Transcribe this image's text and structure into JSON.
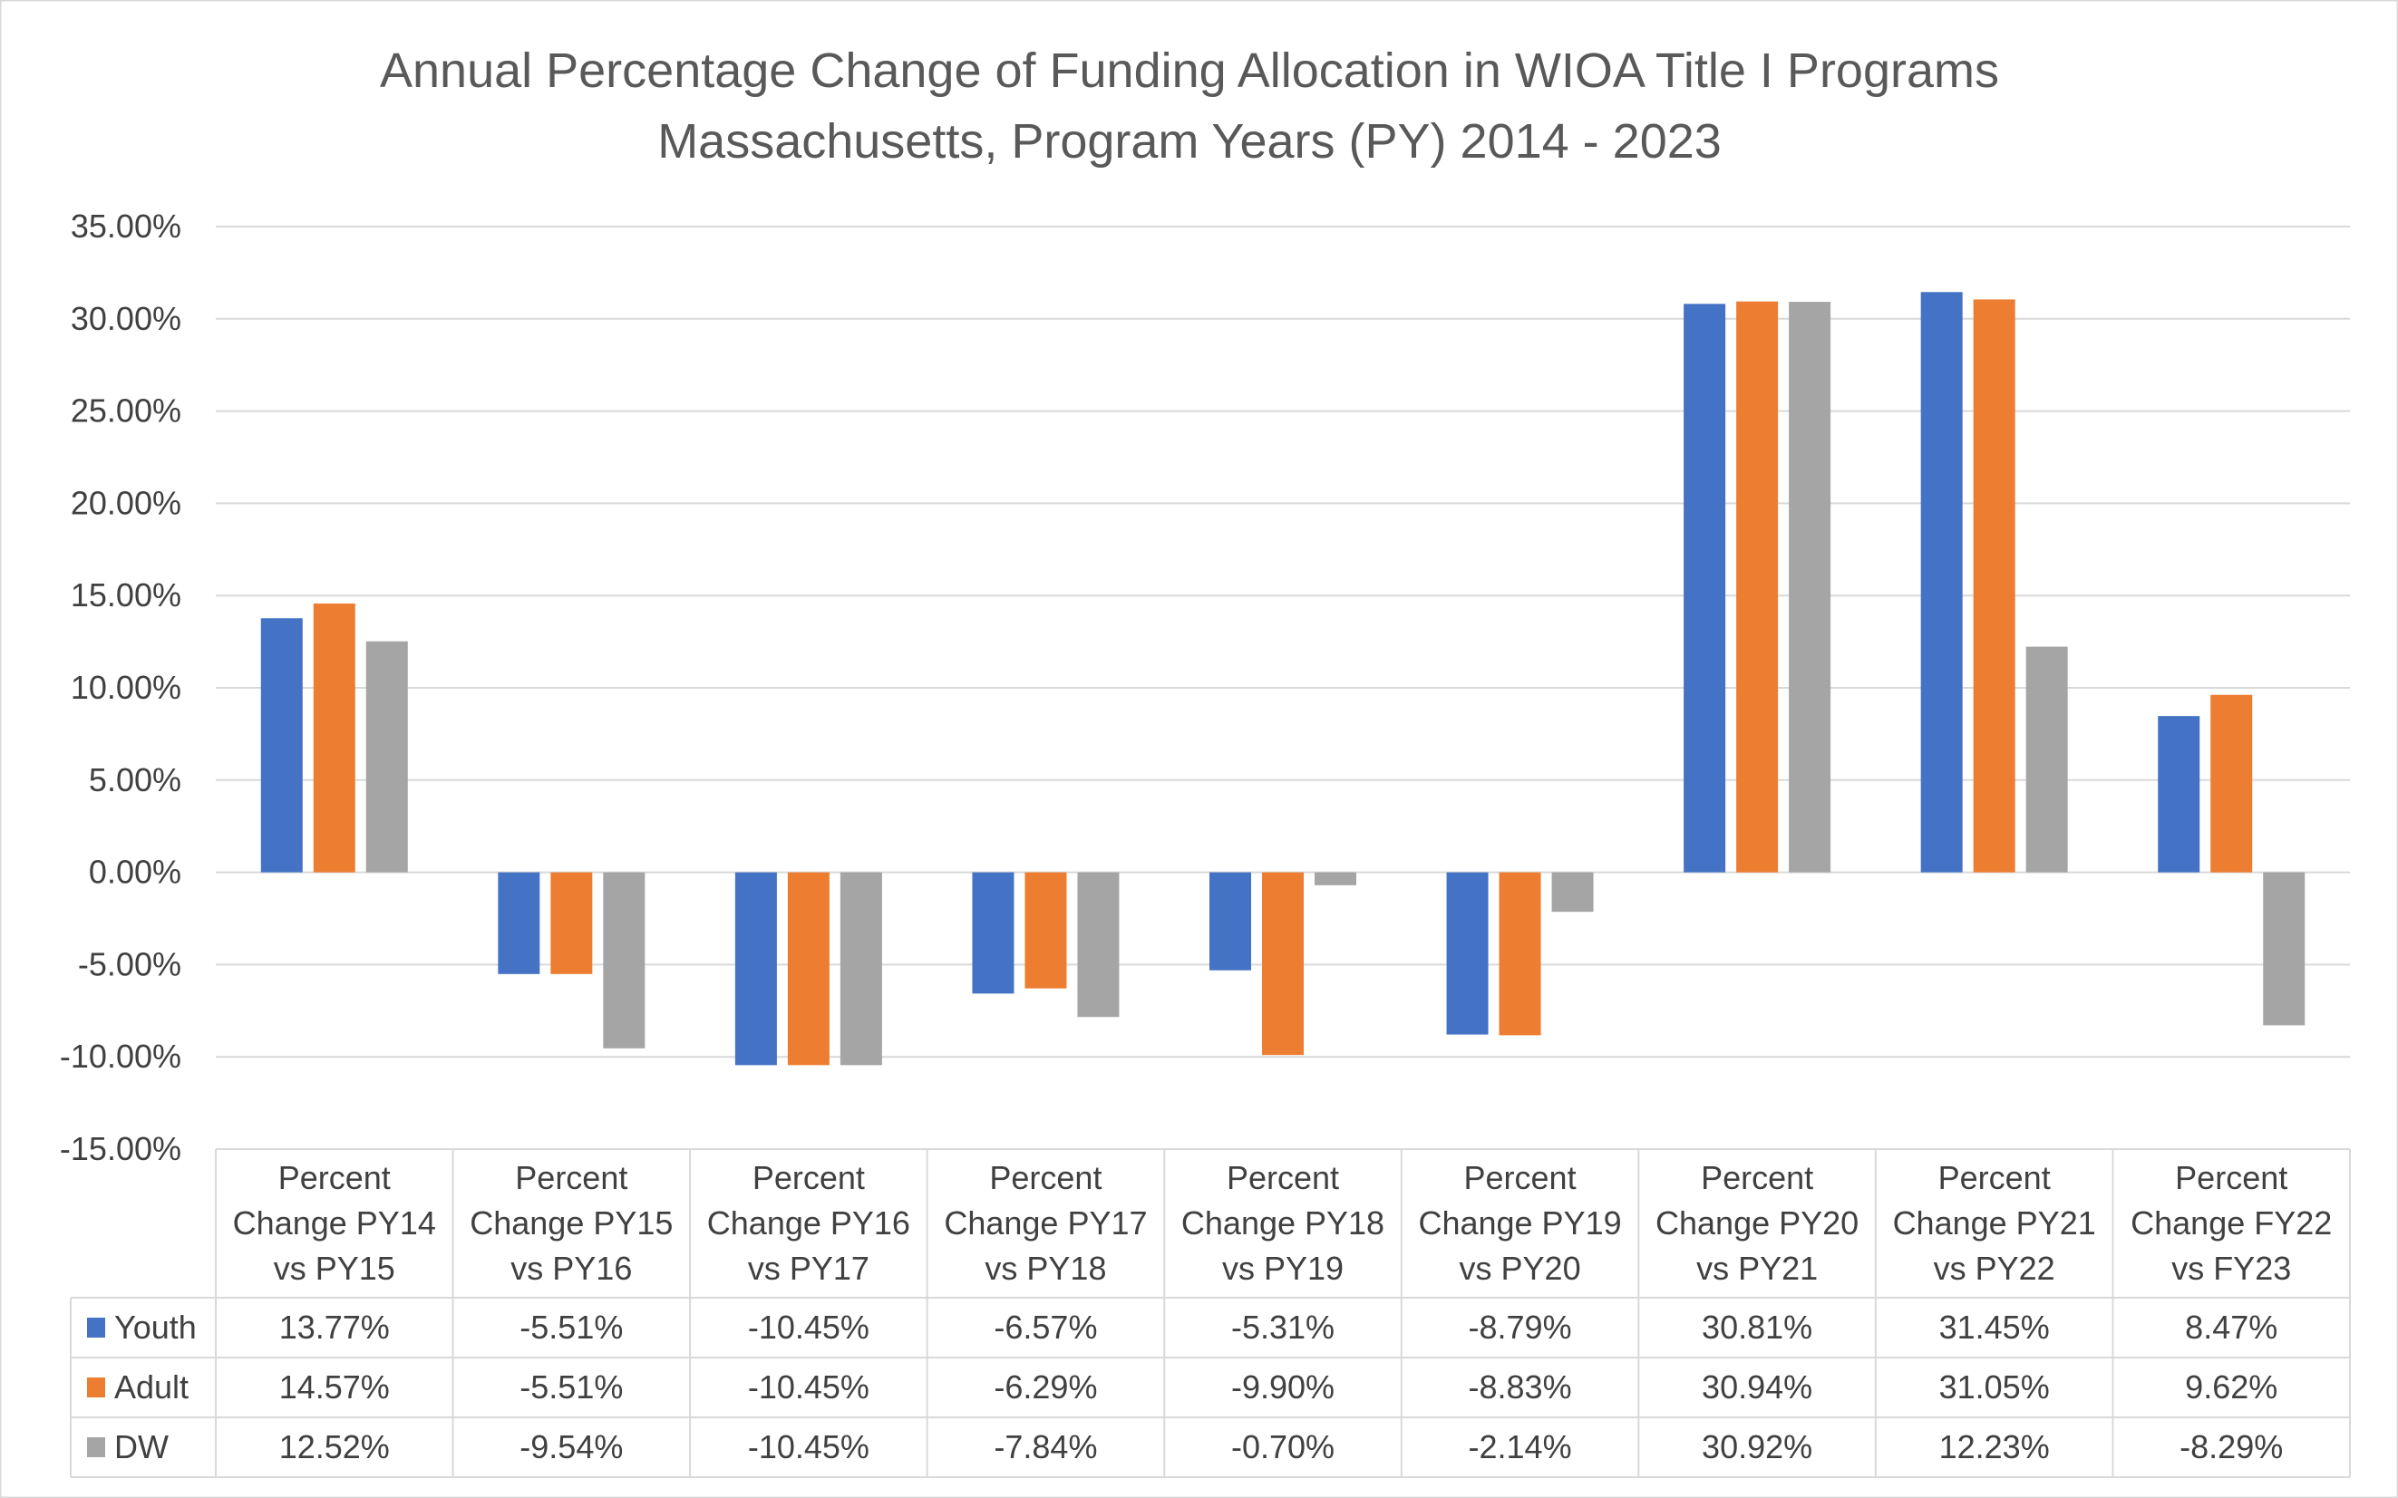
{
  "chart_data": {
    "type": "bar",
    "title": "Annual Percentage Change of Funding Allocation in WIOA Title I Programs",
    "subtitle": "Massachusetts, Program Years (PY) 2014 - 2023",
    "categories": [
      [
        "Percent",
        "Change PY14",
        "vs PY15"
      ],
      [
        "Percent",
        "Change PY15",
        "vs PY16"
      ],
      [
        "Percent",
        "Change PY16",
        "vs PY17"
      ],
      [
        "Percent",
        "Change PY17",
        "vs PY18"
      ],
      [
        "Percent",
        "Change PY18",
        "vs PY19"
      ],
      [
        "Percent",
        "Change PY19",
        "vs PY20"
      ],
      [
        "Percent",
        "Change PY20",
        "vs PY21"
      ],
      [
        "Percent",
        "Change PY21",
        "vs PY22"
      ],
      [
        "Percent",
        "Change FY22",
        "vs FY23"
      ]
    ],
    "series": [
      {
        "name": "Youth",
        "color": "#4472C4",
        "values": [
          13.77,
          -5.51,
          -10.45,
          -6.57,
          -5.31,
          -8.79,
          30.81,
          31.45,
          8.47
        ],
        "labels": [
          "13.77%",
          "-5.51%",
          "-10.45%",
          "-6.57%",
          "-5.31%",
          "-8.79%",
          "30.81%",
          "31.45%",
          "8.47%"
        ]
      },
      {
        "name": "Adult",
        "color": "#ED7D31",
        "values": [
          14.57,
          -5.51,
          -10.45,
          -6.29,
          -9.9,
          -8.83,
          30.94,
          31.05,
          9.62
        ],
        "labels": [
          "14.57%",
          "-5.51%",
          "-10.45%",
          "-6.29%",
          "-9.90%",
          "-8.83%",
          "30.94%",
          "31.05%",
          "9.62%"
        ]
      },
      {
        "name": "DW",
        "color": "#A5A5A5",
        "values": [
          12.52,
          -9.54,
          -10.45,
          -7.84,
          -0.7,
          -2.14,
          30.92,
          12.23,
          -8.29
        ],
        "labels": [
          "12.52%",
          "-9.54%",
          "-10.45%",
          "-7.84%",
          "-0.70%",
          "-2.14%",
          "30.92%",
          "12.23%",
          "-8.29%"
        ]
      }
    ],
    "ylim": [
      -15,
      35
    ],
    "yticks": [
      35,
      30,
      25,
      20,
      15,
      10,
      5,
      0,
      -5,
      -10,
      -15
    ],
    "ytick_labels": [
      "35.00%",
      "30.00%",
      "25.00%",
      "20.00%",
      "15.00%",
      "10.00%",
      "5.00%",
      "0.00%",
      "-5.00%",
      "-10.00%",
      "-15.00%"
    ],
    "grid": true,
    "legend": "data-table",
    "gridline_color": "#D9D9D9",
    "text_color": "#404040",
    "title_color": "#595959"
  }
}
